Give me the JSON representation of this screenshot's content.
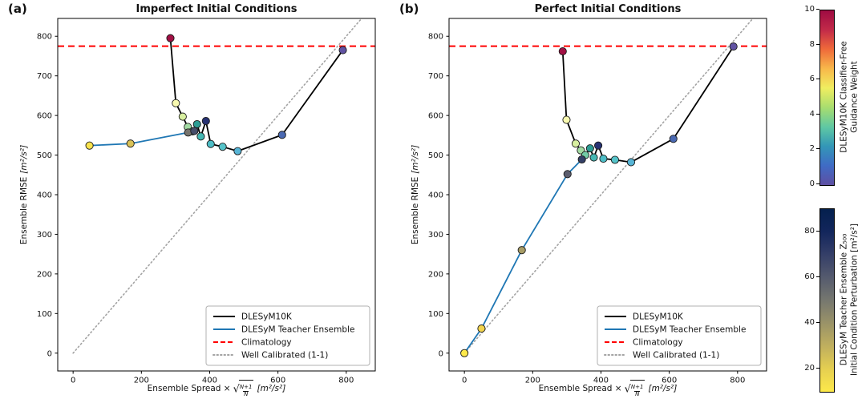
{
  "figure": {
    "background": "#ffffff",
    "axis": {
      "ylabel_text": "Ensemble RMSE",
      "ylabel_units": "[m²/s²]",
      "xlabel_prefix": "Ensemble Spread ×",
      "xlabel_sqrt": "√",
      "xlabel_frac_num": "N+1",
      "xlabel_frac_den": "N",
      "xlabel_units": "[m²/s²]"
    }
  },
  "chart_data": [
    {
      "type": "line",
      "panel_label": "(a)",
      "title": "Imperfect Initial Conditions",
      "xlabel": "Ensemble Spread × √((N+1)/N) [m²/s²]",
      "ylabel": "Ensemble RMSE [m²/s²]",
      "xlim": [
        -45,
        885
      ],
      "ylim": [
        -45,
        845
      ],
      "xticks": [
        0,
        200,
        400,
        600,
        800
      ],
      "yticks": [
        0,
        100,
        200,
        300,
        400,
        500,
        600,
        700,
        800
      ],
      "grid": false,
      "climatology": 775,
      "climatology_color": "#ff0000",
      "identity_color": "#a3a3a3",
      "identity_line": {
        "from": [
          0,
          0
        ],
        "to": [
          845,
          845
        ]
      },
      "series": [
        {
          "name": "DLESyM10K",
          "color": "#000000",
          "points": [
            {
              "x": 285,
              "y": 795,
              "color": "#a11044"
            },
            {
              "x": 301,
              "y": 631,
              "color": "#f8fab0"
            },
            {
              "x": 321,
              "y": 597,
              "color": "#d8efa0"
            },
            {
              "x": 336,
              "y": 571,
              "color": "#a3dba3"
            },
            {
              "x": 350,
              "y": 560,
              "color": "#72cba6"
            },
            {
              "x": 363,
              "y": 578,
              "color": "#2c9c93"
            },
            {
              "x": 374,
              "y": 547,
              "color": "#45b7b3"
            },
            {
              "x": 389,
              "y": 586,
              "color": "#273272"
            },
            {
              "x": 403,
              "y": 528,
              "color": "#4dbdc6"
            },
            {
              "x": 438,
              "y": 521,
              "color": "#55c3c9"
            },
            {
              "x": 482,
              "y": 510,
              "color": "#57b5d6"
            },
            {
              "x": 612,
              "y": 551,
              "color": "#4a69b2"
            },
            {
              "x": 790,
              "y": 765,
              "color": "#6052a2"
            }
          ]
        },
        {
          "name": "DLESyM Teacher Ensemble",
          "color": "#1f77b4",
          "points": [
            {
              "x": 48,
              "y": 524,
              "color": "#f8e34e"
            },
            {
              "x": 168,
              "y": 529,
              "color": "#d9c257"
            },
            {
              "x": 337,
              "y": 557,
              "color": "#77746e"
            },
            {
              "x": 355,
              "y": 561,
              "color": "#454c68"
            }
          ]
        }
      ],
      "legend": [
        {
          "label": "DLESyM10K",
          "color": "#000000",
          "style": "solid"
        },
        {
          "label": "DLESyM Teacher Ensemble",
          "color": "#1f77b4",
          "style": "solid"
        },
        {
          "label": "Climatology",
          "color": "#ff0000",
          "style": "dashed"
        },
        {
          "label": "Well Calibrated (1-1)",
          "color": "#a3a3a3",
          "style": "dotted"
        }
      ],
      "legend_position": "lower right"
    },
    {
      "type": "line",
      "panel_label": "(b)",
      "title": "Perfect Initial Conditions",
      "xlabel": "Ensemble Spread × √((N+1)/N) [m²/s²]",
      "ylabel": "Ensemble RMSE [m²/s²]",
      "xlim": [
        -45,
        885
      ],
      "ylim": [
        -45,
        845
      ],
      "xticks": [
        0,
        200,
        400,
        600,
        800
      ],
      "yticks": [
        0,
        100,
        200,
        300,
        400,
        500,
        600,
        700,
        800
      ],
      "grid": false,
      "climatology": 775,
      "climatology_color": "#ff0000",
      "identity_color": "#a3a3a3",
      "identity_line": {
        "from": [
          0,
          0
        ],
        "to": [
          845,
          845
        ]
      },
      "series": [
        {
          "name": "DLESyM10K",
          "color": "#000000",
          "points": [
            {
              "x": 288,
              "y": 762,
              "color": "#a11044"
            },
            {
              "x": 299,
              "y": 589,
              "color": "#f8fab0"
            },
            {
              "x": 326,
              "y": 529,
              "color": "#d8efa0"
            },
            {
              "x": 341,
              "y": 512,
              "color": "#a3dba3"
            },
            {
              "x": 354,
              "y": 500,
              "color": "#72cba6"
            },
            {
              "x": 368,
              "y": 517,
              "color": "#2c9c93"
            },
            {
              "x": 379,
              "y": 494,
              "color": "#45b7b3"
            },
            {
              "x": 392,
              "y": 524,
              "color": "#273272"
            },
            {
              "x": 407,
              "y": 491,
              "color": "#4dbdc6"
            },
            {
              "x": 441,
              "y": 488,
              "color": "#55c3c9"
            },
            {
              "x": 488,
              "y": 482,
              "color": "#57b5d6"
            },
            {
              "x": 612,
              "y": 541,
              "color": "#4a69b2"
            },
            {
              "x": 788,
              "y": 774,
              "color": "#6052a2"
            }
          ]
        },
        {
          "name": "DLESyM Teacher Ensemble",
          "color": "#1f77b4",
          "points": [
            {
              "x": 0,
              "y": 0,
              "color": "#fde94c"
            },
            {
              "x": 50,
              "y": 62,
              "color": "#f2d44e"
            },
            {
              "x": 168,
              "y": 260,
              "color": "#a79c66"
            },
            {
              "x": 302,
              "y": 452,
              "color": "#5c5d6e"
            },
            {
              "x": 344,
              "y": 489,
              "color": "#333f66"
            }
          ]
        }
      ],
      "legend": [
        {
          "label": "DLESyM10K",
          "color": "#000000",
          "style": "solid"
        },
        {
          "label": "DLESyM Teacher Ensemble",
          "color": "#1f77b4",
          "style": "solid"
        },
        {
          "label": "Climatology",
          "color": "#ff0000",
          "style": "dashed"
        },
        {
          "label": "Well Calibrated (1-1)",
          "color": "#a3a3a3",
          "style": "dotted"
        }
      ],
      "legend_position": "lower right"
    }
  ],
  "colorbars": [
    {
      "id": "guidance",
      "label_line1": "DLESyM10K Classifier-Free",
      "label_line2": "Guidance Weight",
      "vmin": 0,
      "vmax": 10,
      "ticks": [
        0,
        2,
        4,
        6,
        8,
        10
      ],
      "stops": [
        "#5e4fa2",
        "#3f6bc5",
        "#3397b7",
        "#5fc8a3",
        "#a8dd6f",
        "#f0ee60",
        "#f8b84a",
        "#ef6a3a",
        "#c22a49",
        "#9e0b42"
      ]
    },
    {
      "id": "perturbation",
      "label_line1": "DLESyM Teacher Ensemble Z₅₀₀",
      "label_line2": "Initial Condition Perturbation [m²/s²]",
      "vmin": 10,
      "vmax": 90,
      "ticks": [
        20,
        40,
        60,
        80
      ],
      "stops": [
        "#fde94a",
        "#e5cf51",
        "#c0af5e",
        "#9a9368",
        "#76776f",
        "#555b6e",
        "#353f68",
        "#13265c",
        "#04204e"
      ]
    }
  ]
}
